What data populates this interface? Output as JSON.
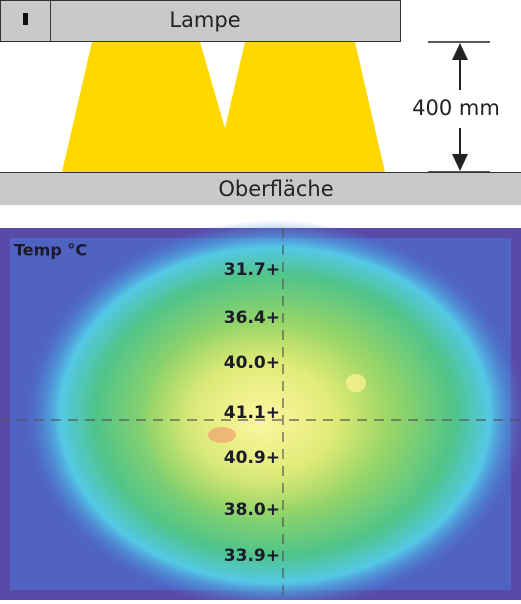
{
  "lamp": {
    "label": "Lampe"
  },
  "distance": {
    "label": "400 mm"
  },
  "surface": {
    "label": "Oberfläche"
  },
  "thermal_image": {
    "title": "Temp °C",
    "readings": [
      "31.7+",
      "36.4+",
      "40.0+",
      "41.1+",
      "40.9+",
      "38.0+",
      "33.9+"
    ]
  }
}
